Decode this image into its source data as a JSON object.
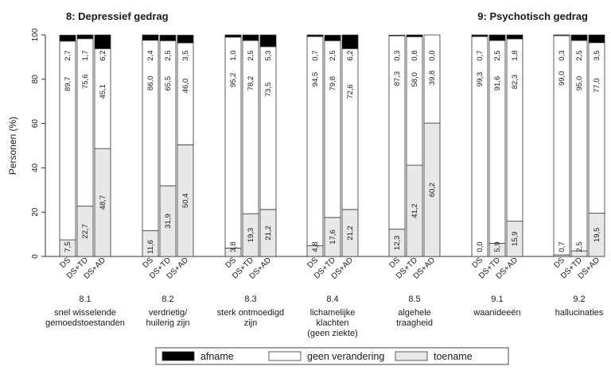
{
  "chart_data": {
    "type": "bar",
    "stacked": true,
    "titles": [
      "8: Depressief gedrag",
      "9: Psychotisch gedrag"
    ],
    "ylabel": "Personen (%)",
    "ylim": [
      0,
      100
    ],
    "yticks": [
      "0",
      "20",
      "40",
      "60",
      "80",
      "100"
    ],
    "legend": {
      "placement": "bottom",
      "entries": [
        {
          "key": "afname",
          "label": "afname",
          "color": "#000000"
        },
        {
          "key": "geen",
          "label": "geen verandering",
          "color": "#ffffff"
        },
        {
          "key": "toename",
          "label": "toename",
          "color": "#e8e8e8"
        }
      ]
    },
    "subcategories": [
      "DS",
      "DS+TD",
      "DS+AD"
    ],
    "groups": [
      {
        "code": "8.1",
        "lines": [
          "snel wisselende",
          "gemoedstoestanden"
        ],
        "bars": [
          {
            "toename": "7,5",
            "geen": "89,7",
            "afname": "2,7"
          },
          {
            "toename": "22,7",
            "geen": "75,6",
            "afname": "1,7"
          },
          {
            "toename": "48,7",
            "geen": "45,1",
            "afname": "6,2"
          }
        ]
      },
      {
        "code": "8.2",
        "lines": [
          "verdrietig/",
          "huilerig zijn"
        ],
        "bars": [
          {
            "toename": "11,6",
            "geen": "86,0",
            "afname": "2,4"
          },
          {
            "toename": "31,9",
            "geen": "65,5",
            "afname": "2,5"
          },
          {
            "toename": "50,4",
            "geen": "46,0",
            "afname": "3,5"
          }
        ]
      },
      {
        "code": "8.3",
        "lines": [
          "sterk ontmoedigd",
          "zijn"
        ],
        "bars": [
          {
            "toename": "3,8",
            "geen": "95,2",
            "afname": "1,0"
          },
          {
            "toename": "19,3",
            "geen": "78,2",
            "afname": "2,5"
          },
          {
            "toename": "21,2",
            "geen": "73,5",
            "afname": "5,3"
          }
        ]
      },
      {
        "code": "8.4",
        "lines": [
          "lichamelijke",
          "klachten",
          "(geen ziekte)"
        ],
        "bars": [
          {
            "toename": "4,8",
            "geen": "94,5",
            "afname": "0,7"
          },
          {
            "toename": "17,6",
            "geen": "79,8",
            "afname": "2,5"
          },
          {
            "toename": "21,2",
            "geen": "72,6",
            "afname": "6,2"
          }
        ]
      },
      {
        "code": "8.5",
        "lines": [
          "algehele",
          "traagheid"
        ],
        "bars": [
          {
            "toename": "12,3",
            "geen": "87,3",
            "afname": "0,3"
          },
          {
            "toename": "41,2",
            "geen": "58,0",
            "afname": "0,8"
          },
          {
            "toename": "60,2",
            "geen": "39,8",
            "afname": "0,0"
          }
        ]
      },
      {
        "code": "9.1",
        "lines": [
          "waanideeën"
        ],
        "bars": [
          {
            "toename": "0,0",
            "geen": "99,3",
            "afname": "0,7"
          },
          {
            "toename": "5,9",
            "geen": "91,6",
            "afname": "2,5"
          },
          {
            "toename": "15,9",
            "geen": "82,3",
            "afname": "1,8"
          }
        ]
      },
      {
        "code": "9.2",
        "lines": [
          "hallucinaties"
        ],
        "bars": [
          {
            "toename": "0,7",
            "geen": "99,0",
            "afname": "0,3"
          },
          {
            "toename": "2,5",
            "geen": "95,0",
            "afname": "2,5"
          },
          {
            "toename": "19,5",
            "geen": "77,0",
            "afname": "3,5"
          }
        ]
      }
    ]
  }
}
